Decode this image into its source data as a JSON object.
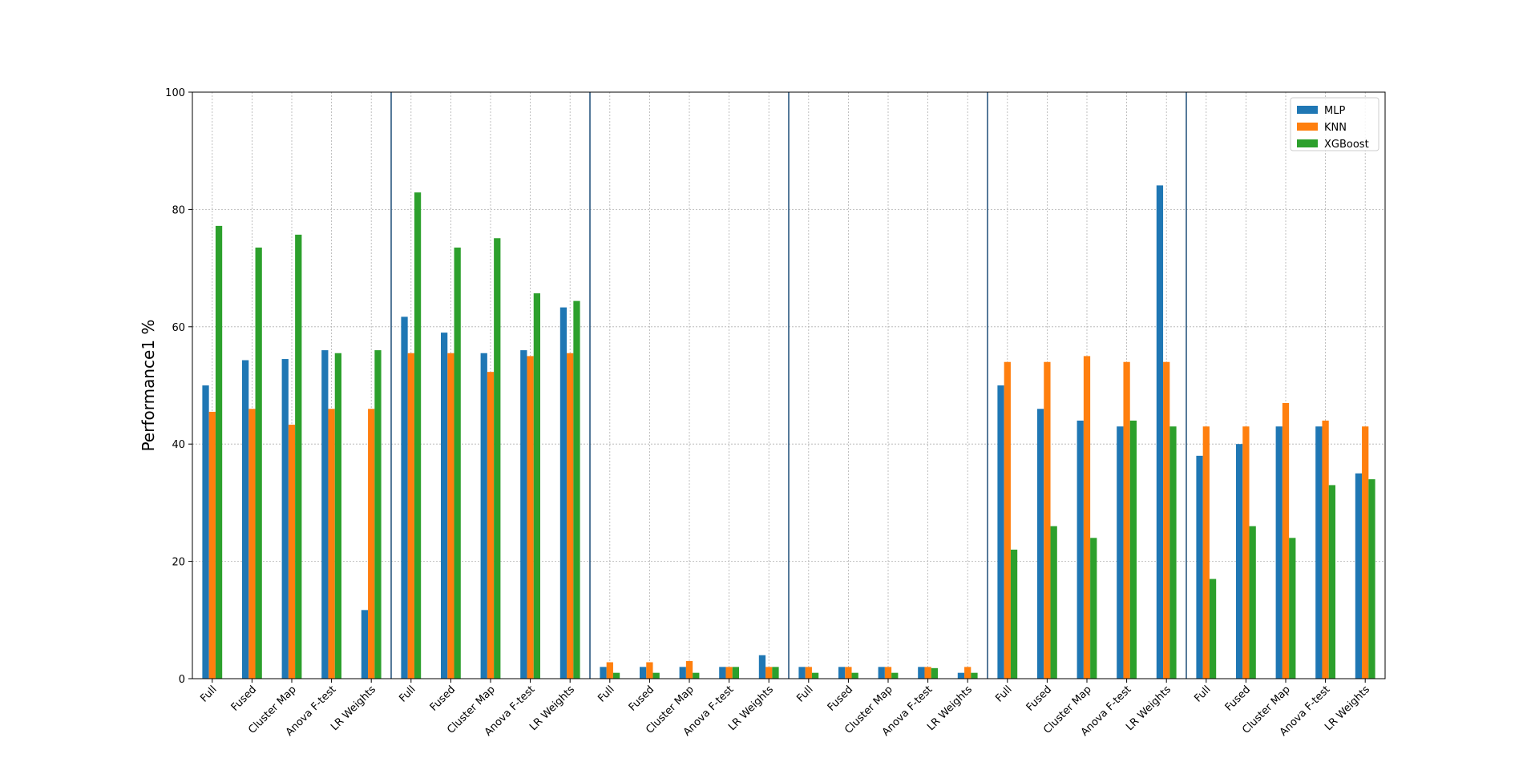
{
  "chart_data": {
    "type": "bar",
    "title": "",
    "xlabel": "",
    "ylabel": "Performance1 %",
    "ylim": [
      0,
      100
    ],
    "yticks": [
      0,
      20,
      40,
      60,
      80,
      100
    ],
    "grid": true,
    "legend_placement": "top-right",
    "categories": [
      "Full",
      "Fused",
      "Cluster Map",
      "Anova F-test",
      "LR Weights",
      "Full",
      "Fused",
      "Cluster Map",
      "Anova F-test",
      "LR Weights",
      "Full",
      "Fused",
      "Cluster Map",
      "Anova F-test",
      "LR Weights",
      "Full",
      "Fused",
      "Cluster Map",
      "Anova F-test",
      "LR Weights",
      "Full",
      "Fused",
      "Cluster Map",
      "Anova F-test",
      "LR Weights",
      "Full",
      "Fused",
      "Cluster Map",
      "Anova F-test",
      "LR Weights"
    ],
    "group_size": 5,
    "series": [
      {
        "name": "MLP",
        "color": "#1f77b4",
        "values": [
          50,
          54.3,
          54.5,
          56,
          11.7,
          61.7,
          59,
          55.5,
          56,
          63.3,
          2,
          2,
          2,
          2,
          4,
          2,
          2,
          2,
          2,
          1,
          50,
          46,
          44,
          43,
          84.1,
          38,
          40,
          43,
          43,
          35
        ]
      },
      {
        "name": "KNN",
        "color": "#ff7f0e",
        "values": [
          45.5,
          46,
          43.3,
          46,
          46,
          55.5,
          55.5,
          52.3,
          55,
          55.5,
          2.8,
          2.8,
          3,
          2,
          2,
          2,
          2,
          2,
          2,
          2,
          54,
          54,
          55,
          54,
          54,
          43,
          43,
          47,
          44,
          43
        ]
      },
      {
        "name": "XGBoost",
        "color": "#2ca02c",
        "values": [
          77.2,
          73.5,
          75.7,
          55.5,
          56,
          82.9,
          73.5,
          75.1,
          65.7,
          64.4,
          1,
          1,
          1,
          2,
          2,
          1,
          1,
          1,
          1.8,
          1,
          22,
          26,
          24,
          44,
          43,
          17,
          26,
          24,
          33,
          34
        ]
      }
    ]
  }
}
